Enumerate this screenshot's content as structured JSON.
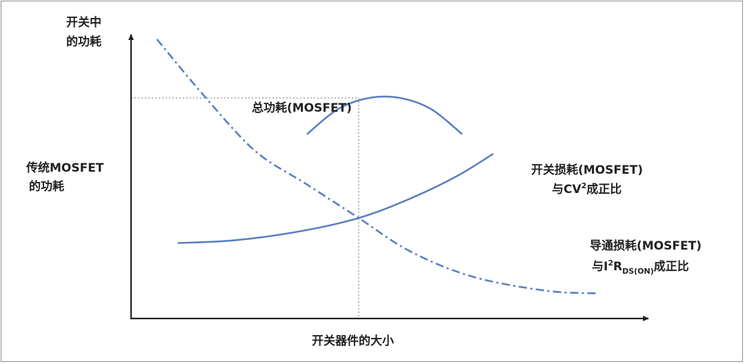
{
  "chart_data": {
    "type": "line",
    "ylabel_lines": [
      "开关中",
      "的功耗"
    ],
    "xlabel": "开关器件的大小",
    "reference_label_lines": [
      "传统MOSFET",
      "的功耗"
    ],
    "series": [
      {
        "name": "总功耗(MOSFET)",
        "style": "solid",
        "points": [
          [
            0.34,
            0.66
          ],
          [
            0.4,
            0.75
          ],
          [
            0.46,
            0.79
          ],
          [
            0.52,
            0.79
          ],
          [
            0.58,
            0.75
          ],
          [
            0.64,
            0.66
          ]
        ]
      },
      {
        "name": "开关损耗(MOSFET)",
        "label_line2": {
          "prefix": "与CV",
          "sup": "2",
          "suffix": "成正比"
        },
        "style": "solid",
        "points": [
          [
            0.09,
            0.27
          ],
          [
            0.2,
            0.28
          ],
          [
            0.32,
            0.31
          ],
          [
            0.44,
            0.36
          ],
          [
            0.54,
            0.43
          ],
          [
            0.63,
            0.51
          ],
          [
            0.7,
            0.59
          ]
        ]
      },
      {
        "name": "导通损耗(MOSFET)",
        "label_line2": {
          "prefix": "与I",
          "sup": "2",
          "mid": "R",
          "sub": "DS(ON)",
          "suffix": "成正比"
        },
        "style": "dash-dot",
        "points": [
          [
            0.05,
            1.0
          ],
          [
            0.14,
            0.8
          ],
          [
            0.24,
            0.6
          ],
          [
            0.34,
            0.48
          ],
          [
            0.44,
            0.36
          ],
          [
            0.54,
            0.24
          ],
          [
            0.66,
            0.15
          ],
          [
            0.8,
            0.1
          ],
          [
            0.9,
            0.09
          ]
        ]
      }
    ],
    "crossover_x": 0.44,
    "min_total_y": 0.79,
    "grid": false,
    "colors": {
      "curve": "#5a7fbf",
      "axis": "#222222",
      "guide": "#999999"
    }
  }
}
